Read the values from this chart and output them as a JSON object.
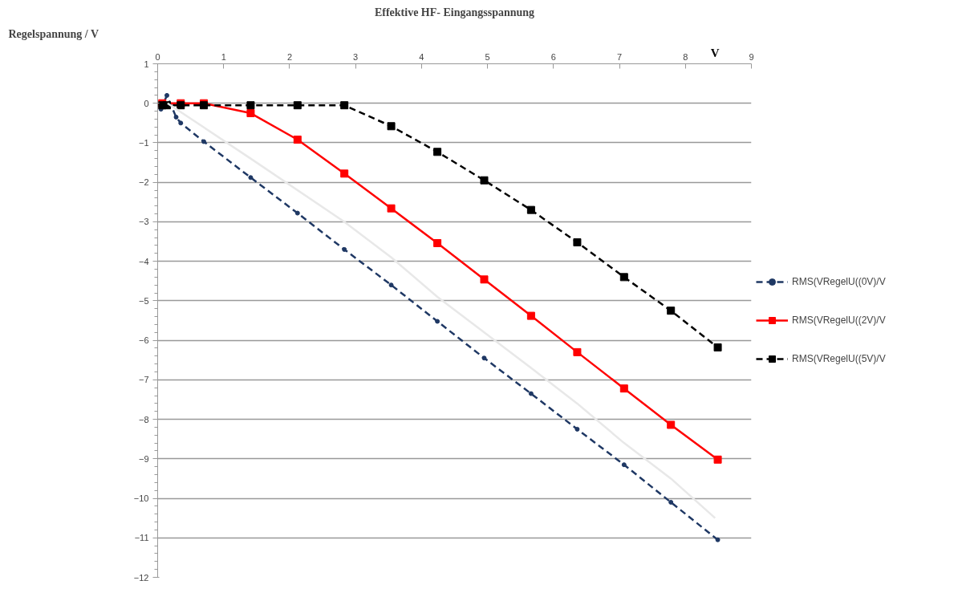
{
  "chart_data": {
    "type": "line",
    "title": "Effektive HF- Eingangsspannung",
    "xlabel": "V",
    "ylabel": "Regelspannung / V",
    "xlim": [
      0,
      9
    ],
    "xticks": [
      0,
      1,
      2,
      3,
      4,
      5,
      6,
      7,
      8,
      9
    ],
    "ylim": [
      -12,
      1
    ],
    "yticks": [
      1,
      0,
      -1,
      -2,
      -3,
      -4,
      -5,
      -6,
      -7,
      -8,
      -9,
      -10,
      -11,
      -12
    ],
    "grid": "y",
    "legend": "right",
    "series": [
      {
        "name": "RMS(VRegelU((0V)/V",
        "color": "#1f3864",
        "line_style": "dashed",
        "marker": "circle",
        "x": [
          0.05,
          0.14,
          0.28,
          0.35,
          0.7,
          1.41,
          2.12,
          2.83,
          3.54,
          4.24,
          4.95,
          5.66,
          6.36,
          7.07,
          7.78,
          8.49
        ],
        "values": [
          -0.15,
          0.2,
          -0.35,
          -0.5,
          -0.97,
          -1.88,
          -2.78,
          -3.7,
          -4.6,
          -5.52,
          -6.45,
          -7.35,
          -8.25,
          -9.15,
          -10.1,
          -11.05
        ]
      },
      {
        "name": "RMS(VRegelU((2V)/V",
        "color": "#ff0000",
        "line_style": "solid",
        "marker": "square",
        "x": [
          0.07,
          0.35,
          0.7,
          1.41,
          2.12,
          2.83,
          3.54,
          4.24,
          4.95,
          5.66,
          6.36,
          7.07,
          7.78,
          8.49
        ],
        "values": [
          0,
          0,
          0,
          -0.25,
          -0.92,
          -1.78,
          -2.66,
          -3.54,
          -4.46,
          -5.38,
          -6.3,
          -7.22,
          -8.14,
          -9.02
        ]
      },
      {
        "name": "RMS(VRegelU((5V)/V",
        "color": "#000000",
        "line_style": "dashed",
        "marker": "square",
        "x": [
          0.07,
          0.14,
          0.35,
          0.7,
          1.41,
          2.12,
          2.83,
          3.54,
          4.24,
          4.95,
          5.66,
          6.36,
          7.07,
          7.78,
          8.49
        ],
        "values": [
          -0.05,
          -0.05,
          -0.05,
          -0.05,
          -0.05,
          -0.05,
          -0.05,
          -0.58,
          -1.23,
          -1.95,
          -2.7,
          -3.52,
          -4.4,
          -5.25,
          -6.18
        ]
      },
      {
        "color": "#e8e8e8",
        "line_style": "solid",
        "marker": "none",
        "x": [
          0.15,
          1.41,
          2.83,
          3.54,
          4.24,
          4.95,
          5.66,
          6.36,
          7.07,
          7.78,
          8.45
        ],
        "values": [
          0,
          -1.4,
          -3.0,
          -3.9,
          -4.9,
          -5.8,
          -6.7,
          -7.6,
          -8.6,
          -9.5,
          -10.5
        ]
      }
    ]
  }
}
